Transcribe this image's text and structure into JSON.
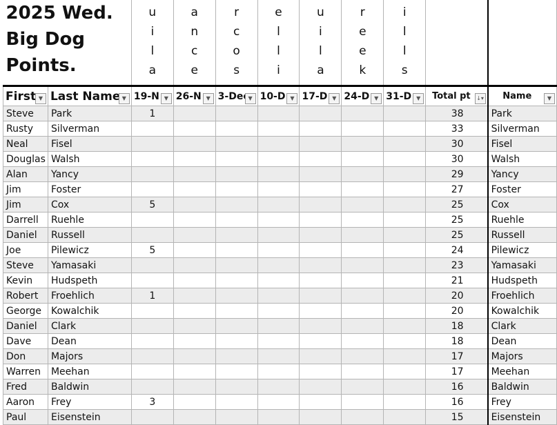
{
  "title_lines": [
    "2025 Wed.",
    "Big Dog",
    "Points."
  ],
  "vertical_names": [
    "uila",
    "ance",
    "rcos",
    "ellі",
    "uila",
    "reek",
    "ills"
  ],
  "headers": [
    "First",
    "Last Name",
    "19-N",
    "26-N",
    "3-Dec",
    "10-D",
    "17-D",
    "24-D",
    "31-D",
    "Total pt",
    "Name"
  ],
  "icons": {
    "filter": "filter-dropdown-icon",
    "sort": "sort-descending-filter-icon"
  },
  "rows": [
    {
      "first": "Steve",
      "last": "Park",
      "wk1": "1",
      "total": "38",
      "name": "Park"
    },
    {
      "first": "Rusty",
      "last": "Silverman",
      "wk1": "",
      "total": "33",
      "name": "Silverman"
    },
    {
      "first": "Neal",
      "last": "Fisel",
      "wk1": "",
      "total": "30",
      "name": "Fisel"
    },
    {
      "first": "Douglas",
      "last": "Walsh",
      "wk1": "",
      "total": "30",
      "name": "Walsh"
    },
    {
      "first": "Alan",
      "last": "Yancy",
      "wk1": "",
      "total": "29",
      "name": "Yancy"
    },
    {
      "first": "Jim",
      "last": "Foster",
      "wk1": "",
      "total": "27",
      "name": "Foster"
    },
    {
      "first": "Jim",
      "last": "Cox",
      "wk1": "5",
      "total": "25",
      "name": "Cox"
    },
    {
      "first": "Darrell",
      "last": "Ruehle",
      "wk1": "",
      "total": "25",
      "name": "Ruehle"
    },
    {
      "first": "Daniel",
      "last": "Russell",
      "wk1": "",
      "total": "25",
      "name": "Russell"
    },
    {
      "first": "Joe",
      "last": "Pilewicz",
      "wk1": "5",
      "total": "24",
      "name": "Pilewicz"
    },
    {
      "first": "Steve",
      "last": "Yamasaki",
      "wk1": "",
      "total": "23",
      "name": "Yamasaki"
    },
    {
      "first": "Kevin",
      "last": "Hudspeth",
      "wk1": "",
      "total": "21",
      "name": "Hudspeth"
    },
    {
      "first": "Robert",
      "last": "Froehlich",
      "wk1": "1",
      "total": "20",
      "name": "Froehlich"
    },
    {
      "first": "George",
      "last": "Kowalchik",
      "wk1": "",
      "total": "20",
      "name": "Kowalchik"
    },
    {
      "first": "Daniel",
      "last": "Clark",
      "wk1": "",
      "total": "18",
      "name": "Clark"
    },
    {
      "first": "Dave",
      "last": "Dean",
      "wk1": "",
      "total": "18",
      "name": "Dean"
    },
    {
      "first": "Don",
      "last": "Majors",
      "wk1": "",
      "total": "17",
      "name": "Majors"
    },
    {
      "first": "Warren",
      "last": "Meehan",
      "wk1": "",
      "total": "17",
      "name": "Meehan"
    },
    {
      "first": "Fred",
      "last": "Baldwin",
      "wk1": "",
      "total": "16",
      "name": "Baldwin"
    },
    {
      "first": "Aaron",
      "last": "Frey",
      "wk1": "3",
      "total": "16",
      "name": "Frey"
    },
    {
      "first": "Paul",
      "last": "Eisenstein",
      "wk1": "",
      "total": "15",
      "name": "Eisenstein"
    }
  ]
}
